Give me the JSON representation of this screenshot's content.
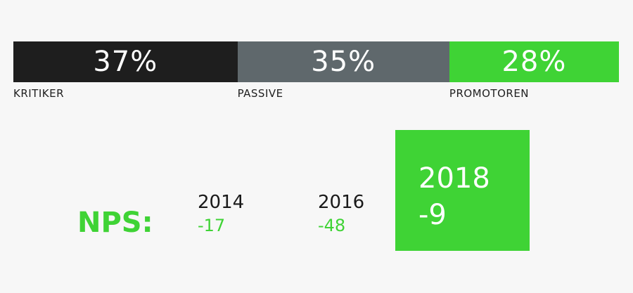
{
  "chart_data": {
    "type": "bar",
    "stacked": true,
    "orientation": "horizontal",
    "categories": [
      "KRITIKER",
      "PASSIVE",
      "PROMOTOREN"
    ],
    "values": [
      37,
      35,
      28
    ],
    "value_labels": [
      "37%",
      "35%",
      "28%"
    ],
    "colors": [
      "#1e1e1e",
      "#5f686c",
      "#3fd335"
    ]
  },
  "nps": {
    "label": "NPS:",
    "history": [
      {
        "year": "2014",
        "score": "-17"
      },
      {
        "year": "2016",
        "score": "-48"
      }
    ],
    "current": {
      "year": "2018",
      "score": "-9"
    }
  },
  "colors": {
    "background": "#f7f7f7",
    "accent": "#3fd335",
    "text": "#1a1a1a"
  }
}
